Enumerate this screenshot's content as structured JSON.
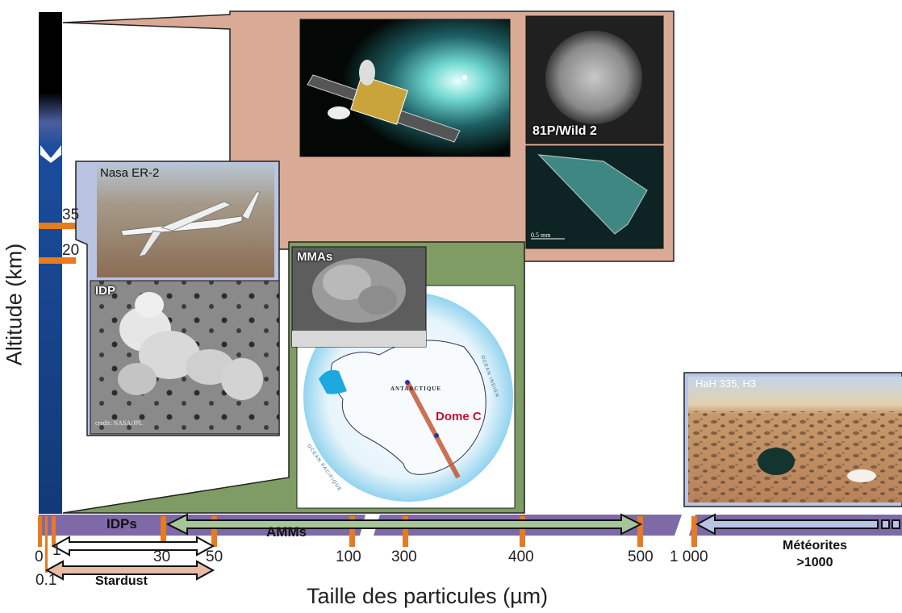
{
  "axis": {
    "y_label": "Altitude (km)",
    "x_label": "Taille des particules  (µm)",
    "altitude_ticks": [
      "35",
      "20"
    ],
    "size_ticks": [
      "0",
      "1",
      "0.1",
      "30",
      "50",
      "100",
      "300",
      "400",
      "500",
      "1 000"
    ]
  },
  "ranges": {
    "idps": "IDPs",
    "amms": "AMMs",
    "stardust": "Stardust",
    "meteorites_line1": "Météorites",
    "meteorites_line2": ">1000"
  },
  "photos": {
    "stardust_craft": "",
    "comet": "81P/Wild 2",
    "aerogel_scale": "0.5 mm",
    "plane": "Nasa ER-2",
    "idp": "IDP",
    "idp_credit": "credit: NASA/JPL",
    "mmas": "MMAs",
    "dome_c": "Dome C",
    "antarctique": "ANTARCTIQUE",
    "ocean_indien": "OCEAN INDIEN",
    "ocean_pacifique": "OCEAN PACIFIQUE",
    "meteorite": "HaH 335, H3"
  },
  "colors": {
    "salmon_panel": "#d9aa96",
    "green_panel": "#7e9c63",
    "blue_panel": "#b9c4e2",
    "purple_band": "#7f6aa8",
    "orange_tick": "#e87a22",
    "altitude_bar": "#1d4f9a"
  }
}
